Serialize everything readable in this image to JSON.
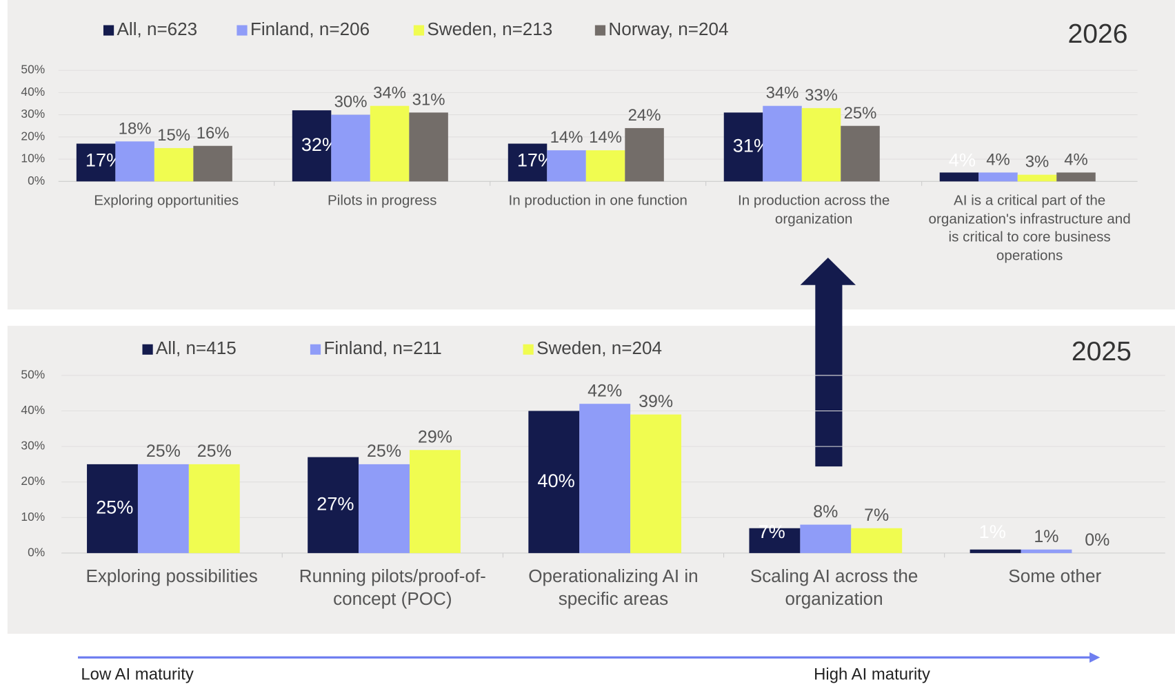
{
  "chart_data": [
    {
      "type": "bar",
      "title": "2026",
      "categories": [
        "Exploring opportunities",
        "Pilots in progress",
        "In production in one function",
        "In production across the organization",
        "AI is a critical part of the organization's infrastructure and is critical to core business operations"
      ],
      "series": [
        {
          "name": "All, n=623",
          "color": "#141b4d",
          "values": [
            17,
            32,
            17,
            31,
            4
          ],
          "value_labels": [
            "17%",
            "32%",
            "17%",
            "31%",
            "4%"
          ]
        },
        {
          "name": "Finland, n=206",
          "color": "#8f9cf8",
          "values": [
            18,
            30,
            14,
            34,
            4
          ],
          "value_labels": [
            "18%",
            "30%",
            "14%",
            "34%",
            "4%"
          ]
        },
        {
          "name": "Sweden, n=213",
          "color": "#f0fc50",
          "values": [
            15,
            34,
            14,
            33,
            3
          ],
          "value_labels": [
            "15%",
            "34%",
            "14%",
            "33%",
            "3%"
          ]
        },
        {
          "name": "Norway, n=204",
          "color": "#736d69",
          "values": [
            16,
            31,
            24,
            25,
            4
          ],
          "value_labels": [
            "16%",
            "31%",
            "24%",
            "25%",
            "4%"
          ]
        }
      ],
      "ylim": [
        0,
        50
      ],
      "yticks": [
        {
          "value": 0,
          "label": "0%"
        },
        {
          "value": 10,
          "label": "10%"
        },
        {
          "value": 20,
          "label": "20%"
        },
        {
          "value": 30,
          "label": "30%"
        },
        {
          "value": 40,
          "label": "40%"
        },
        {
          "value": 50,
          "label": "50%"
        }
      ],
      "grid": true,
      "legend": "top-left"
    },
    {
      "type": "bar",
      "title": "2025",
      "categories": [
        "Exploring possibilities",
        "Running pilots/proof-of-concept (POC)",
        "Operationalizing AI in specific areas",
        "Scaling AI across the organization",
        "Some other"
      ],
      "series": [
        {
          "name": "All, n=415",
          "color": "#141b4d",
          "values": [
            25,
            27,
            40,
            7,
            1
          ],
          "value_labels": [
            "25%",
            "27%",
            "40%",
            "7%",
            "1%"
          ]
        },
        {
          "name": "Finland, n=211",
          "color": "#8f9cf8",
          "values": [
            25,
            25,
            42,
            8,
            1
          ],
          "value_labels": [
            "25%",
            "25%",
            "42%",
            "8%",
            "1%"
          ]
        },
        {
          "name": "Sweden, n=204",
          "color": "#f0fc50",
          "values": [
            25,
            29,
            39,
            7,
            0
          ],
          "value_labels": [
            "25%",
            "29%",
            "39%",
            "7%",
            "0%"
          ]
        }
      ],
      "ylim": [
        0,
        50
      ],
      "yticks": [
        {
          "value": 0,
          "label": "0%"
        },
        {
          "value": 10,
          "label": "10%"
        },
        {
          "value": 20,
          "label": "20%"
        },
        {
          "value": 30,
          "label": "30%"
        },
        {
          "value": 40,
          "label": "40%"
        },
        {
          "value": 50,
          "label": "50%"
        }
      ],
      "grid": true,
      "legend": "top-left"
    }
  ],
  "footer": {
    "low": "Low AI maturity",
    "high": "High AI maturity"
  }
}
